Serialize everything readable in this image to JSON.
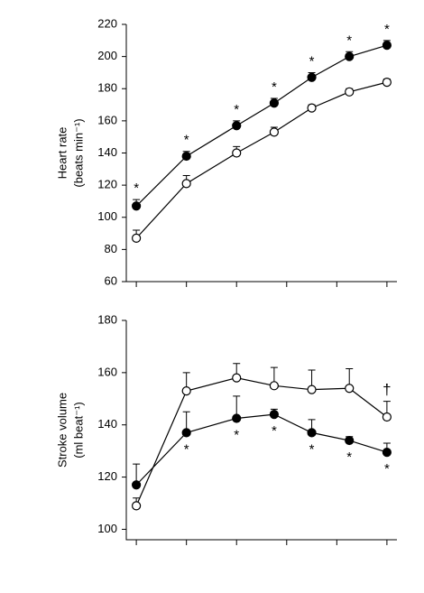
{
  "chart_data": [
    {
      "type": "line",
      "ylabel": "Heart rate",
      "ylabel_unit": "(beats min⁻¹)",
      "ylim": [
        60,
        220
      ],
      "yticks": [
        60,
        80,
        100,
        120,
        140,
        160,
        180,
        200,
        220
      ],
      "xlim": [
        -0.2,
        5.2
      ],
      "xticks": [
        0,
        1,
        2,
        3,
        4,
        5
      ],
      "series": [
        {
          "color": "#000000",
          "fill": "#000000",
          "x": [
            0,
            1,
            2,
            2.75,
            3.5,
            4.25,
            5
          ],
          "values": [
            107,
            138,
            157,
            171,
            187,
            200,
            207
          ],
          "errors": [
            4,
            3,
            3,
            3,
            3,
            3,
            3
          ],
          "point_labels": [
            "*",
            "*",
            "*",
            "*",
            "*",
            "*",
            "*"
          ]
        },
        {
          "color": "#000000",
          "fill": "#ffffff",
          "x": [
            0,
            1,
            2,
            2.75,
            3.5,
            4.25,
            5
          ],
          "values": [
            87,
            121,
            140,
            153,
            168,
            178,
            184
          ],
          "errors": [
            5,
            5,
            4,
            3,
            2,
            2,
            2
          ]
        }
      ]
    },
    {
      "type": "line",
      "ylabel": "Stroke volume",
      "ylabel_unit": "(ml beat⁻¹)",
      "ylim": [
        96,
        180
      ],
      "yticks": [
        100,
        120,
        140,
        160,
        180
      ],
      "xlim": [
        -0.2,
        5.2
      ],
      "xticks": [
        0,
        1,
        2,
        3,
        4,
        5
      ],
      "series": [
        {
          "color": "#000000",
          "fill": "#000000",
          "x": [
            0,
            1,
            2,
            2.75,
            3.5,
            4.25,
            5
          ],
          "values": [
            117,
            137,
            142.5,
            144,
            137,
            134,
            129.5
          ],
          "errors": [
            8,
            8,
            8.5,
            2,
            5,
            1.5,
            3.5
          ],
          "point_labels": [
            null,
            "*",
            "*",
            "*",
            "*",
            "*",
            "*"
          ]
        },
        {
          "color": "#000000",
          "fill": "#ffffff",
          "x": [
            0,
            1,
            2,
            2.75,
            3.5,
            4.25,
            5
          ],
          "values": [
            109,
            153,
            158,
            155,
            153.5,
            154,
            143
          ],
          "errors": [
            3,
            7,
            5.5,
            7,
            7.5,
            7.5,
            6
          ],
          "point_labels": [
            null,
            null,
            null,
            null,
            null,
            null,
            "†"
          ]
        }
      ]
    }
  ]
}
